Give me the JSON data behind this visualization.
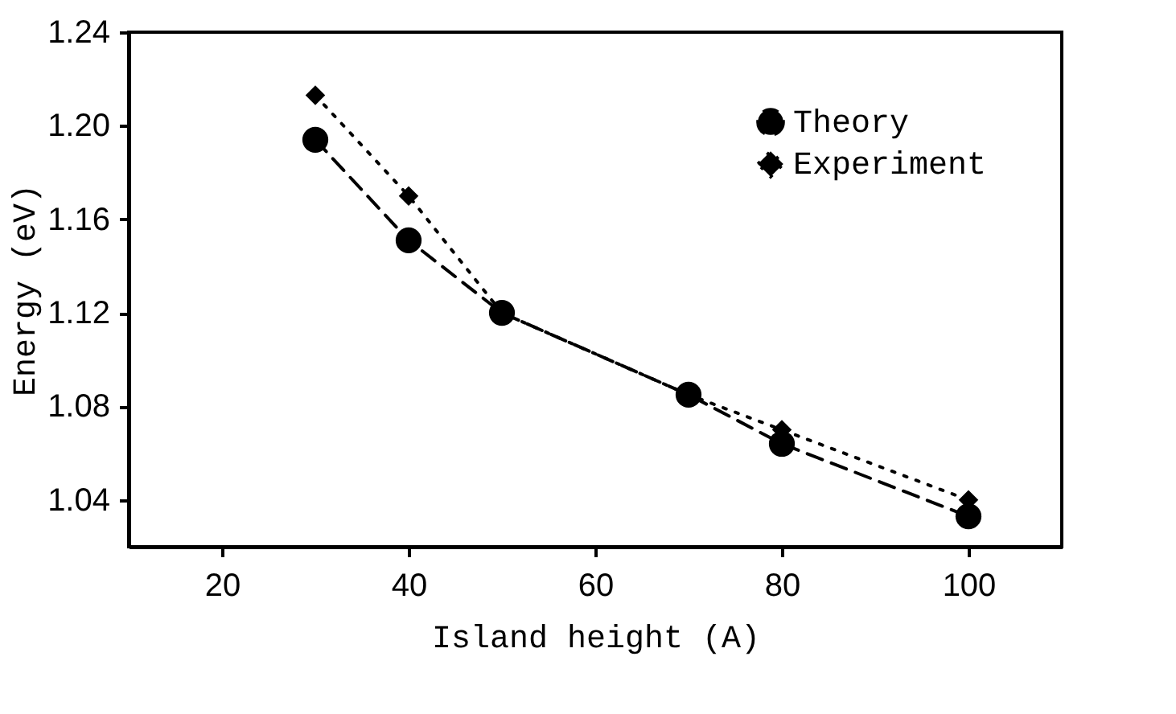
{
  "chart_data": {
    "type": "line",
    "xlabel": "Island height (A)",
    "ylabel": "Energy (eV)",
    "x": [
      30,
      40,
      50,
      70,
      80,
      100
    ],
    "series": [
      {
        "name": "Theory",
        "color": "#000000",
        "marker": "circle",
        "line_style": "dashed",
        "values": [
          1.194,
          1.151,
          1.12,
          1.085,
          1.064,
          1.033
        ]
      },
      {
        "name": "Experiment",
        "color": "#000000",
        "marker": "diamond",
        "line_style": "dotted",
        "values": [
          1.213,
          1.17,
          1.12,
          1.085,
          1.07,
          1.04
        ]
      }
    ],
    "xlim": [
      10,
      110
    ],
    "xticks": [
      20,
      40,
      60,
      80,
      100
    ],
    "ylim": [
      1.02,
      1.24
    ],
    "yticks": [
      1.04,
      1.08,
      1.12,
      1.16,
      {
        "value": 1.2,
        "label": "1.20"
      },
      1.24
    ],
    "grid": false,
    "legend": "top right"
  }
}
